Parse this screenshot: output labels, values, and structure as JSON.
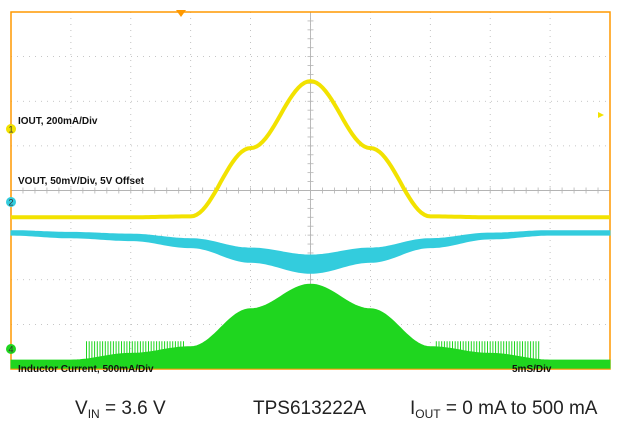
{
  "scope": {
    "colors": {
      "background": "#ffffff",
      "grid": "#b4b4b4",
      "border": "#ff9900",
      "ch1": "#f2e200",
      "ch2": "#33ccdd",
      "ch4": "#1fd61f"
    },
    "channel_markers": [
      "1",
      "2",
      "4"
    ],
    "labels": {
      "iout": "IOUT, 200mA/Div",
      "vout": "VOUT, 50mV/Div, 5V Offset",
      "inductor": "Inductor  Current, 500mA/Div",
      "timebase": "5mS/Div"
    }
  },
  "captions": {
    "vin_main": "V",
    "vin_sub": "IN",
    "vin_rest": " = 3.6 V",
    "part": "TPS613222A",
    "iout_main": "I",
    "iout_sub": "OUT",
    "iout_rest": " = 0 mA to 500 mA"
  },
  "chart_data": {
    "type": "line",
    "title": "",
    "xlabel": "5mS/Div",
    "x_divisions": 10,
    "y_divisions": 8,
    "x": [
      0,
      10,
      20,
      30,
      40,
      50,
      60,
      70,
      80,
      90,
      100
    ],
    "series": [
      {
        "name": "IOUT, 200mA/Div",
        "y": [
          3.4,
          3.4,
          3.4,
          3.42,
          4.95,
          6.45,
          4.95,
          3.42,
          3.4,
          3.4,
          3.4
        ]
      },
      {
        "name": "VOUT, 50mV/Div, 5V Offset",
        "y": [
          3.05,
          3.0,
          2.95,
          2.82,
          2.55,
          2.35,
          2.55,
          2.82,
          2.98,
          3.05,
          3.05
        ]
      },
      {
        "name": "Inductor  Current, 500mA/Div",
        "y": [
          0.2,
          0.2,
          0.35,
          0.5,
          1.35,
          1.9,
          1.35,
          0.5,
          0.35,
          0.2,
          0.2
        ]
      }
    ]
  }
}
